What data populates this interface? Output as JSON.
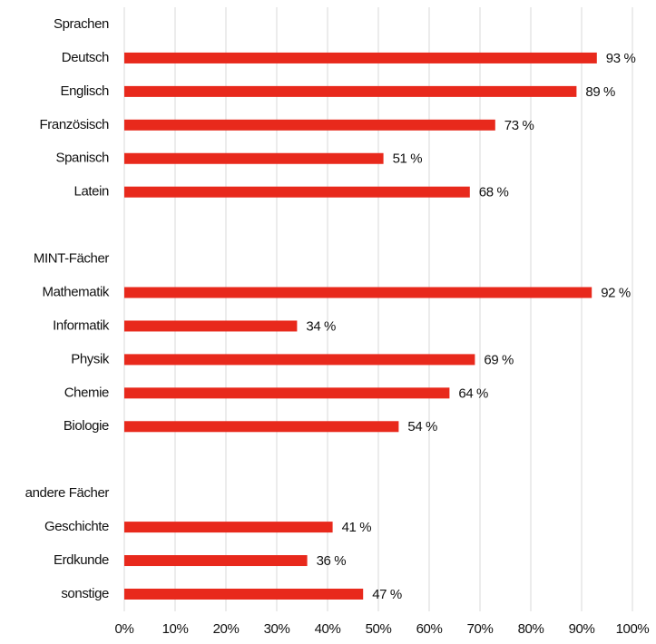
{
  "chart_data": {
    "type": "bar",
    "orientation": "horizontal",
    "categories": [
      "Sprachen",
      "Deutsch",
      "Englisch",
      "Französisch",
      "Spanisch",
      "Latein",
      null,
      "MINT-Fächer",
      "Mathematik",
      "Informatik",
      "Physik",
      "Chemie",
      "Biologie",
      null,
      "andere Fächer",
      "Geschichte",
      "Erdkunde",
      "sonstige"
    ],
    "values": [
      null,
      93,
      89,
      73,
      51,
      68,
      null,
      null,
      92,
      34,
      69,
      64,
      54,
      null,
      null,
      41,
      36,
      47
    ],
    "value_labels": [
      null,
      "93 %",
      "89 %",
      "73 %",
      "51 %",
      "68 %",
      null,
      null,
      "92 %",
      "34 %",
      "69 %",
      "64 %",
      "54 %",
      null,
      null,
      "41 %",
      "36 %",
      "47 %"
    ],
    "color": "#e8291c",
    "xlim": [
      0,
      100
    ],
    "xticks": [
      {
        "value": 0,
        "label": "0%"
      },
      {
        "value": 10,
        "label": "10%"
      },
      {
        "value": 20,
        "label": "20%"
      },
      {
        "value": 30,
        "label": "30%"
      },
      {
        "value": 40,
        "label": "40%"
      },
      {
        "value": 50,
        "label": "50%"
      },
      {
        "value": 60,
        "label": "60%"
      },
      {
        "value": 70,
        "label": "70%"
      },
      {
        "value": 80,
        "label": "80%"
      },
      {
        "value": 90,
        "label": "90%"
      },
      {
        "value": 100,
        "label": "100%"
      }
    ],
    "grid": true
  }
}
